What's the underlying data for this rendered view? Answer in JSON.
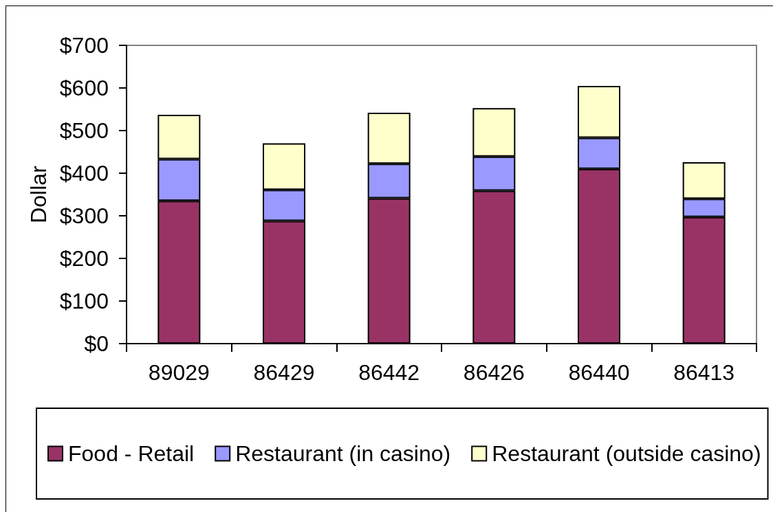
{
  "chart_data": {
    "type": "bar",
    "ylabel": "Dollar",
    "categories": [
      "89029",
      "86429",
      "86442",
      "86426",
      "86440",
      "86413"
    ],
    "series": [
      {
        "name": "Food - Retail",
        "color": "#993366",
        "values": [
          335,
          288,
          341,
          359,
          410,
          297
        ]
      },
      {
        "name": "Restaurant (in casino)",
        "color": "#9999ff",
        "values": [
          98,
          73,
          81,
          80,
          73,
          43
        ]
      },
      {
        "name": "Restaurant (outside casino)",
        "color": "#ffffcc",
        "values": [
          104,
          109,
          120,
          114,
          122,
          86
        ]
      }
    ],
    "stacked": true,
    "ylim": [
      0,
      700
    ],
    "yticks": [
      {
        "value": 0,
        "label": "$0"
      },
      {
        "value": 100,
        "label": "$100"
      },
      {
        "value": 200,
        "label": "$200"
      },
      {
        "value": 300,
        "label": "$300"
      },
      {
        "value": 400,
        "label": "$400"
      },
      {
        "value": 500,
        "label": "$500"
      },
      {
        "value": 600,
        "label": "$600"
      },
      {
        "value": 700,
        "label": "$700"
      }
    ],
    "grid": false,
    "legend": "bottom"
  }
}
